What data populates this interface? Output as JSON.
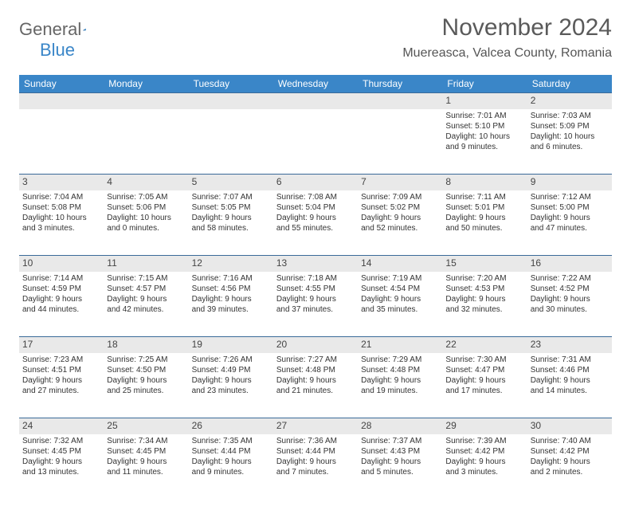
{
  "logo": {
    "part1": "General",
    "part2": "Blue"
  },
  "title": {
    "month": "November 2024",
    "location": "Muereasca, Valcea County, Romania"
  },
  "theme": {
    "header_bg": "#3a86c8",
    "header_fg": "#ffffff",
    "line": "#3a6a99",
    "shade": "#e9e9e9",
    "text": "#333333"
  },
  "weekdays": [
    "Sunday",
    "Monday",
    "Tuesday",
    "Wednesday",
    "Thursday",
    "Friday",
    "Saturday"
  ],
  "weeks": [
    [
      null,
      null,
      null,
      null,
      null,
      {
        "n": "1",
        "sr": "Sunrise: 7:01 AM",
        "ss": "Sunset: 5:10 PM",
        "dl1": "Daylight: 10 hours",
        "dl2": "and 9 minutes."
      },
      {
        "n": "2",
        "sr": "Sunrise: 7:03 AM",
        "ss": "Sunset: 5:09 PM",
        "dl1": "Daylight: 10 hours",
        "dl2": "and 6 minutes."
      }
    ],
    [
      {
        "n": "3",
        "sr": "Sunrise: 7:04 AM",
        "ss": "Sunset: 5:08 PM",
        "dl1": "Daylight: 10 hours",
        "dl2": "and 3 minutes."
      },
      {
        "n": "4",
        "sr": "Sunrise: 7:05 AM",
        "ss": "Sunset: 5:06 PM",
        "dl1": "Daylight: 10 hours",
        "dl2": "and 0 minutes."
      },
      {
        "n": "5",
        "sr": "Sunrise: 7:07 AM",
        "ss": "Sunset: 5:05 PM",
        "dl1": "Daylight: 9 hours",
        "dl2": "and 58 minutes."
      },
      {
        "n": "6",
        "sr": "Sunrise: 7:08 AM",
        "ss": "Sunset: 5:04 PM",
        "dl1": "Daylight: 9 hours",
        "dl2": "and 55 minutes."
      },
      {
        "n": "7",
        "sr": "Sunrise: 7:09 AM",
        "ss": "Sunset: 5:02 PM",
        "dl1": "Daylight: 9 hours",
        "dl2": "and 52 minutes."
      },
      {
        "n": "8",
        "sr": "Sunrise: 7:11 AM",
        "ss": "Sunset: 5:01 PM",
        "dl1": "Daylight: 9 hours",
        "dl2": "and 50 minutes."
      },
      {
        "n": "9",
        "sr": "Sunrise: 7:12 AM",
        "ss": "Sunset: 5:00 PM",
        "dl1": "Daylight: 9 hours",
        "dl2": "and 47 minutes."
      }
    ],
    [
      {
        "n": "10",
        "sr": "Sunrise: 7:14 AM",
        "ss": "Sunset: 4:59 PM",
        "dl1": "Daylight: 9 hours",
        "dl2": "and 44 minutes."
      },
      {
        "n": "11",
        "sr": "Sunrise: 7:15 AM",
        "ss": "Sunset: 4:57 PM",
        "dl1": "Daylight: 9 hours",
        "dl2": "and 42 minutes."
      },
      {
        "n": "12",
        "sr": "Sunrise: 7:16 AM",
        "ss": "Sunset: 4:56 PM",
        "dl1": "Daylight: 9 hours",
        "dl2": "and 39 minutes."
      },
      {
        "n": "13",
        "sr": "Sunrise: 7:18 AM",
        "ss": "Sunset: 4:55 PM",
        "dl1": "Daylight: 9 hours",
        "dl2": "and 37 minutes."
      },
      {
        "n": "14",
        "sr": "Sunrise: 7:19 AM",
        "ss": "Sunset: 4:54 PM",
        "dl1": "Daylight: 9 hours",
        "dl2": "and 35 minutes."
      },
      {
        "n": "15",
        "sr": "Sunrise: 7:20 AM",
        "ss": "Sunset: 4:53 PM",
        "dl1": "Daylight: 9 hours",
        "dl2": "and 32 minutes."
      },
      {
        "n": "16",
        "sr": "Sunrise: 7:22 AM",
        "ss": "Sunset: 4:52 PM",
        "dl1": "Daylight: 9 hours",
        "dl2": "and 30 minutes."
      }
    ],
    [
      {
        "n": "17",
        "sr": "Sunrise: 7:23 AM",
        "ss": "Sunset: 4:51 PM",
        "dl1": "Daylight: 9 hours",
        "dl2": "and 27 minutes."
      },
      {
        "n": "18",
        "sr": "Sunrise: 7:25 AM",
        "ss": "Sunset: 4:50 PM",
        "dl1": "Daylight: 9 hours",
        "dl2": "and 25 minutes."
      },
      {
        "n": "19",
        "sr": "Sunrise: 7:26 AM",
        "ss": "Sunset: 4:49 PM",
        "dl1": "Daylight: 9 hours",
        "dl2": "and 23 minutes."
      },
      {
        "n": "20",
        "sr": "Sunrise: 7:27 AM",
        "ss": "Sunset: 4:48 PM",
        "dl1": "Daylight: 9 hours",
        "dl2": "and 21 minutes."
      },
      {
        "n": "21",
        "sr": "Sunrise: 7:29 AM",
        "ss": "Sunset: 4:48 PM",
        "dl1": "Daylight: 9 hours",
        "dl2": "and 19 minutes."
      },
      {
        "n": "22",
        "sr": "Sunrise: 7:30 AM",
        "ss": "Sunset: 4:47 PM",
        "dl1": "Daylight: 9 hours",
        "dl2": "and 17 minutes."
      },
      {
        "n": "23",
        "sr": "Sunrise: 7:31 AM",
        "ss": "Sunset: 4:46 PM",
        "dl1": "Daylight: 9 hours",
        "dl2": "and 14 minutes."
      }
    ],
    [
      {
        "n": "24",
        "sr": "Sunrise: 7:32 AM",
        "ss": "Sunset: 4:45 PM",
        "dl1": "Daylight: 9 hours",
        "dl2": "and 13 minutes."
      },
      {
        "n": "25",
        "sr": "Sunrise: 7:34 AM",
        "ss": "Sunset: 4:45 PM",
        "dl1": "Daylight: 9 hours",
        "dl2": "and 11 minutes."
      },
      {
        "n": "26",
        "sr": "Sunrise: 7:35 AM",
        "ss": "Sunset: 4:44 PM",
        "dl1": "Daylight: 9 hours",
        "dl2": "and 9 minutes."
      },
      {
        "n": "27",
        "sr": "Sunrise: 7:36 AM",
        "ss": "Sunset: 4:44 PM",
        "dl1": "Daylight: 9 hours",
        "dl2": "and 7 minutes."
      },
      {
        "n": "28",
        "sr": "Sunrise: 7:37 AM",
        "ss": "Sunset: 4:43 PM",
        "dl1": "Daylight: 9 hours",
        "dl2": "and 5 minutes."
      },
      {
        "n": "29",
        "sr": "Sunrise: 7:39 AM",
        "ss": "Sunset: 4:42 PM",
        "dl1": "Daylight: 9 hours",
        "dl2": "and 3 minutes."
      },
      {
        "n": "30",
        "sr": "Sunrise: 7:40 AM",
        "ss": "Sunset: 4:42 PM",
        "dl1": "Daylight: 9 hours",
        "dl2": "and 2 minutes."
      }
    ]
  ]
}
